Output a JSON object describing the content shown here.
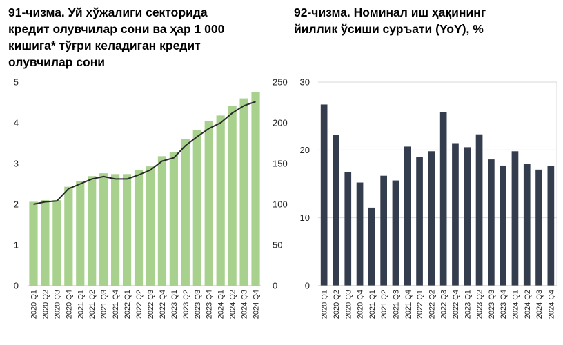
{
  "chart_data": [
    {
      "type": "bar+line",
      "title_lines": [
        "91-чизма. Уй хўжалиги секторида",
        "кредит олувчилар сони ва ҳар 1 000",
        "кишига* тўғри келадиган кредит",
        "олувчилар сони"
      ],
      "categories": [
        "2020 Q1",
        "2020 Q2",
        "2020 Q3",
        "2020 Q4",
        "2021 Q1",
        "2021 Q2",
        "2021 Q3",
        "2021 Q4",
        "2022 Q1",
        "2022 Q2",
        "2022 Q3",
        "2022 Q4",
        "2023 Q1",
        "2023 Q2",
        "2023 Q3",
        "2023 Q4",
        "2024 Q1",
        "2024 Q2",
        "2024 Q3",
        "2024 Q4"
      ],
      "left_axis": {
        "ylim": [
          0,
          5
        ],
        "ticks": [
          "0",
          "1",
          "2",
          "3",
          "4",
          "5"
        ]
      },
      "right_axis": {
        "ylim": [
          0,
          250
        ],
        "ticks": [
          "0",
          "50",
          "100",
          "150",
          "200",
          "250"
        ]
      },
      "bar_color": "#a9d18e",
      "line_color": "#2a2a2a",
      "series": [
        {
          "type": "bar",
          "axis": "left",
          "values": [
            2.06,
            2.1,
            2.1,
            2.43,
            2.57,
            2.69,
            2.76,
            2.74,
            2.74,
            2.84,
            2.93,
            3.18,
            3.28,
            3.61,
            3.82,
            4.04,
            4.18,
            4.42,
            4.6,
            4.75
          ]
        },
        {
          "type": "line",
          "axis": "right",
          "values": [
            100,
            103,
            104,
            119,
            125,
            131,
            134,
            131,
            131,
            136,
            142,
            153,
            157,
            172,
            183,
            193,
            200,
            212,
            221,
            226
          ]
        }
      ]
    },
    {
      "type": "bar",
      "title_lines": [
        "92-чизма. Номинал иш ҳақининг",
        "йиллик ўсиши суръати (YoY), %"
      ],
      "categories": [
        "2020 Q1",
        "2020 Q2",
        "2020 Q3",
        "2020 Q4",
        "2021 Q1",
        "2021 Q2",
        "2021 Q3",
        "2021 Q4",
        "2022 Q1",
        "2022 Q2",
        "2022 Q3",
        "2022 Q4",
        "2023 Q1",
        "2023 Q2",
        "2023 Q3",
        "2023 Q4",
        "2024 Q1",
        "2024 Q2",
        "2024 Q3",
        "2024 Q4"
      ],
      "ylim": [
        0,
        30
      ],
      "ticks": [
        "0",
        "10",
        "20",
        "30"
      ],
      "bar_color": "#343d4e",
      "grid": true,
      "values": [
        26.7,
        22.2,
        16.7,
        15.2,
        11.5,
        16.2,
        15.5,
        20.5,
        19.0,
        19.8,
        25.6,
        21.0,
        20.4,
        22.3,
        18.6,
        17.7,
        19.8,
        17.9,
        17.1,
        17.6
      ]
    }
  ]
}
